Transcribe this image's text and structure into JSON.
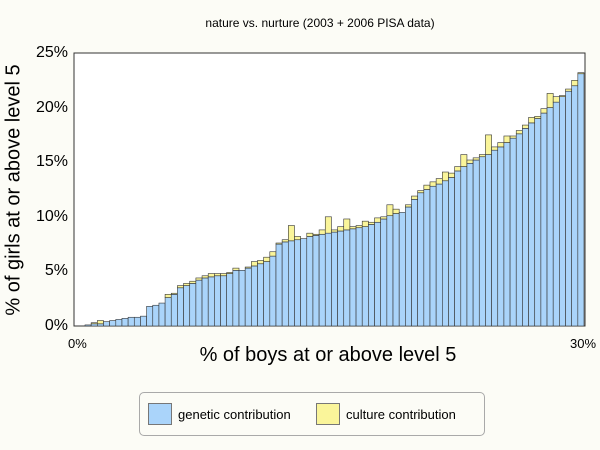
{
  "colors": {
    "genetic": "#aad4fa",
    "culture": "#faf59a",
    "outline": "#333333",
    "background": "#fcfcf6"
  },
  "chart_data": {
    "type": "bar",
    "stacked": true,
    "title": "nature vs. nurture (2003 + 2006 PISA data)",
    "xlabel": "% of boys at or above level 5",
    "ylabel": "% of girls at or above level 5",
    "xlim": [
      0,
      30
    ],
    "ylim": [
      0,
      25
    ],
    "x_tick_labels": [
      "0%",
      "30%"
    ],
    "y_tick_labels": [
      "0%",
      "5%",
      "10%",
      "15%",
      "20%",
      "25%"
    ],
    "y_ticks": [
      0,
      5,
      10,
      15,
      20,
      25
    ],
    "legend_position": "bottom",
    "series": [
      {
        "name": "genetic contribution",
        "values": [
          0.1,
          0.2,
          0.2,
          0.4,
          0.5,
          0.6,
          0.7,
          0.8,
          0.8,
          0.9,
          1.8,
          1.9,
          2.1,
          2.6,
          2.9,
          3.5,
          3.7,
          3.9,
          4.2,
          4.4,
          4.5,
          4.6,
          4.6,
          4.8,
          5.1,
          5.1,
          5.3,
          5.5,
          5.7,
          5.9,
          6.4,
          7.5,
          7.7,
          7.8,
          7.9,
          8.0,
          8.2,
          8.3,
          8.4,
          8.5,
          8.6,
          8.7,
          8.8,
          8.9,
          9.0,
          9.1,
          9.3,
          9.5,
          9.8,
          10.1,
          10.3,
          10.4,
          10.9,
          11.6,
          12.2,
          12.5,
          12.8,
          13.0,
          13.3,
          13.6,
          14.2,
          14.6,
          14.9,
          15.2,
          15.5,
          15.7,
          16.1,
          16.4,
          16.8,
          17.2,
          17.6,
          18.1,
          18.6,
          19.0,
          19.5,
          20.0,
          20.5,
          21.0,
          21.5,
          22.0,
          23.1
        ]
      },
      {
        "name": "culture contribution",
        "values": [
          0,
          0.1,
          0.3,
          0,
          0,
          0,
          0,
          0,
          0,
          0,
          0,
          0,
          0,
          0.3,
          0.1,
          0.2,
          0.2,
          0.2,
          0.2,
          0.2,
          0.3,
          0.2,
          0.2,
          0.1,
          0.2,
          0,
          0.1,
          0.4,
          0.3,
          0.4,
          0.4,
          0.1,
          0.2,
          1.4,
          0.3,
          0,
          0.3,
          0.1,
          0.4,
          1.5,
          0.2,
          0.4,
          1.0,
          0.2,
          0.2,
          0.5,
          0.2,
          0.4,
          0.2,
          1.0,
          0.4,
          0,
          0.2,
          0.3,
          0.2,
          0.4,
          0.4,
          0.5,
          0.8,
          0.4,
          0.4,
          1.1,
          0.3,
          0.2,
          0.2,
          1.8,
          0.3,
          0.4,
          0.6,
          0.2,
          0.3,
          0.3,
          0.5,
          0.2,
          0.4,
          1.3,
          0.5,
          0.1,
          0.2,
          0.5,
          0.1
        ]
      }
    ]
  }
}
